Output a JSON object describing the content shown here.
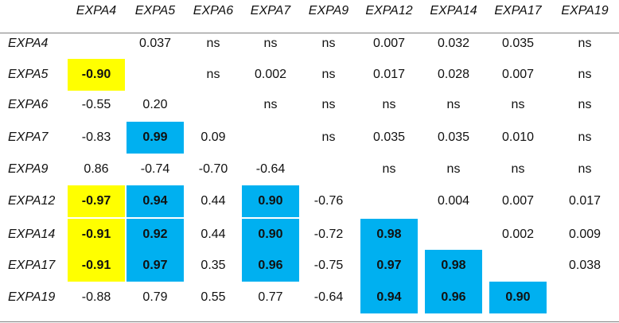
{
  "table": {
    "columns": [
      "EXPA4",
      "EXPA5",
      "EXPA6",
      "EXPA7",
      "EXPA9",
      "EXPA12",
      "EXPA14",
      "EXPA17",
      "EXPA19"
    ],
    "rows": [
      {
        "label": "EXPA4",
        "cells": [
          "",
          "0.037",
          "ns",
          "ns",
          "ns",
          "0.007",
          "0.032",
          "0.035",
          "ns"
        ]
      },
      {
        "label": "EXPA5",
        "cells": [
          "-0.90",
          "",
          "ns",
          "0.002",
          "ns",
          "0.017",
          "0.028",
          "0.007",
          "ns"
        ]
      },
      {
        "label": "EXPA6",
        "cells": [
          "-0.55",
          "0.20",
          "",
          "ns",
          "ns",
          "ns",
          "ns",
          "ns",
          "ns"
        ]
      },
      {
        "label": "EXPA7",
        "cells": [
          "-0.83",
          "0.99",
          "0.09",
          "",
          "ns",
          "0.035",
          "0.035",
          "0.010",
          "ns"
        ]
      },
      {
        "label": "EXPA9",
        "cells": [
          "0.86",
          "-0.74",
          "-0.70",
          "-0.64",
          "",
          "ns",
          "ns",
          "ns",
          "ns"
        ]
      },
      {
        "label": "EXPA12",
        "cells": [
          "-0.97",
          "0.94",
          "0.44",
          "0.90",
          "-0.76",
          "",
          "0.004",
          "0.007",
          "0.017"
        ]
      },
      {
        "label": "EXPA14",
        "cells": [
          "-0.91",
          "0.92",
          "0.44",
          "0.90",
          "-0.72",
          "0.98",
          "",
          "0.002",
          "0.009"
        ]
      },
      {
        "label": "EXPA17",
        "cells": [
          "-0.91",
          "0.97",
          "0.35",
          "0.96",
          "-0.75",
          "0.97",
          "0.98",
          "",
          "0.038"
        ]
      },
      {
        "label": "EXPA19",
        "cells": [
          "-0.88",
          "0.79",
          "0.55",
          "0.77",
          "-0.64",
          "0.94",
          "0.96",
          "0.90",
          ""
        ]
      }
    ],
    "highlights": [
      {
        "row": 1,
        "col": 0,
        "color": "yellow"
      },
      {
        "row": 3,
        "col": 1,
        "color": "blue"
      },
      {
        "row": 5,
        "col": 0,
        "color": "yellow"
      },
      {
        "row": 6,
        "col": 0,
        "color": "yellow"
      },
      {
        "row": 7,
        "col": 0,
        "color": "yellow"
      },
      {
        "row": 5,
        "col": 1,
        "color": "blue"
      },
      {
        "row": 6,
        "col": 1,
        "color": "blue"
      },
      {
        "row": 7,
        "col": 1,
        "color": "blue"
      },
      {
        "row": 5,
        "col": 3,
        "color": "blue"
      },
      {
        "row": 6,
        "col": 3,
        "color": "blue"
      },
      {
        "row": 7,
        "col": 3,
        "color": "blue"
      },
      {
        "row": 6,
        "col": 5,
        "color": "blue"
      },
      {
        "row": 7,
        "col": 5,
        "color": "blue"
      },
      {
        "row": 8,
        "col": 5,
        "color": "blue"
      },
      {
        "row": 7,
        "col": 6,
        "color": "blue"
      },
      {
        "row": 8,
        "col": 6,
        "color": "blue"
      },
      {
        "row": 8,
        "col": 7,
        "color": "blue"
      }
    ]
  },
  "colors": {
    "yellow": "#ffff00",
    "blue": "#00b0f0",
    "rule": "#7f7f7f",
    "text": "#111111"
  }
}
